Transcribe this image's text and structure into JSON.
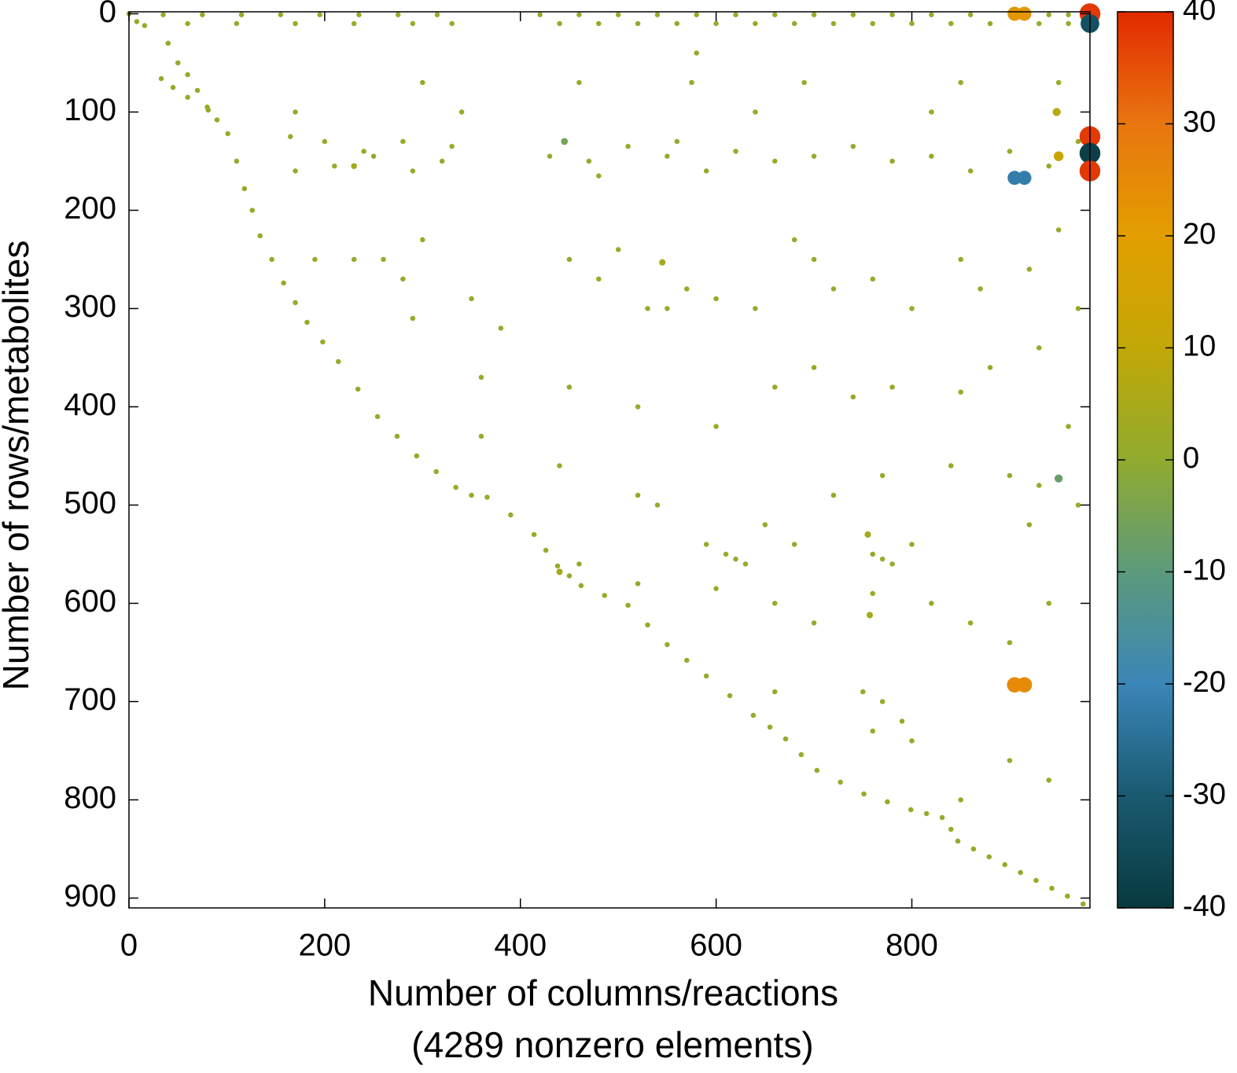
{
  "chart_data": {
    "type": "sparsity",
    "xlabel": [
      "Number of columns/reactions",
      "(4289 nonzero elements)"
    ],
    "ylabel": "Number of rows/metabolites",
    "xlim": [
      0,
      982
    ],
    "ylim": [
      -2,
      910
    ],
    "xticks": [
      0,
      200,
      400,
      600,
      800
    ],
    "yticks": [
      0,
      100,
      200,
      300,
      400,
      500,
      600,
      700,
      800,
      900
    ],
    "colorbar": {
      "lim": [
        -40,
        40
      ],
      "ticks": [
        40,
        30,
        20,
        10,
        0,
        -10,
        -20,
        -30,
        -40
      ],
      "colormap": [
        {
          "value": -40,
          "color": "#083a3f"
        },
        {
          "value": -30,
          "color": "#1a5a70"
        },
        {
          "value": -20,
          "color": "#3a86b8"
        },
        {
          "value": -10,
          "color": "#5c9a7c"
        },
        {
          "value": 0,
          "color": "#90ab2e"
        },
        {
          "value": 10,
          "color": "#c2a806"
        },
        {
          "value": 20,
          "color": "#e39e00"
        },
        {
          "value": 30,
          "color": "#e8760f"
        },
        {
          "value": 40,
          "color": "#e22a00"
        }
      ]
    },
    "points": [
      [
        0,
        0,
        1
      ],
      [
        8,
        8,
        1
      ],
      [
        16,
        12,
        1
      ],
      [
        33,
        66,
        1
      ],
      [
        45,
        75,
        1
      ],
      [
        60,
        85,
        1
      ],
      [
        81,
        98,
        1
      ],
      [
        90,
        108,
        1
      ],
      [
        101,
        122,
        1
      ],
      [
        110,
        150,
        1
      ],
      [
        118,
        178,
        1
      ],
      [
        126,
        200,
        1
      ],
      [
        134,
        226,
        1
      ],
      [
        146,
        250,
        1
      ],
      [
        158,
        274,
        1
      ],
      [
        170,
        294,
        1
      ],
      [
        182,
        314,
        1
      ],
      [
        198,
        334,
        1
      ],
      [
        214,
        354,
        1
      ],
      [
        234,
        382,
        1
      ],
      [
        254,
        410,
        1
      ],
      [
        274,
        430,
        1
      ],
      [
        294,
        450,
        1
      ],
      [
        314,
        466,
        1
      ],
      [
        334,
        482,
        1
      ],
      [
        350,
        490,
        1
      ],
      [
        366,
        492,
        1
      ],
      [
        390,
        510,
        1
      ],
      [
        414,
        530,
        1
      ],
      [
        426,
        546,
        1
      ],
      [
        438,
        562,
        1
      ],
      [
        450,
        572,
        1
      ],
      [
        462,
        582,
        1
      ],
      [
        486,
        592,
        1
      ],
      [
        510,
        602,
        1
      ],
      [
        530,
        622,
        1
      ],
      [
        550,
        642,
        1
      ],
      [
        570,
        658,
        1
      ],
      [
        590,
        674,
        1
      ],
      [
        614,
        694,
        1
      ],
      [
        638,
        714,
        1
      ],
      [
        655,
        726,
        1
      ],
      [
        671,
        738,
        1
      ],
      [
        687,
        754,
        1
      ],
      [
        703,
        770,
        1
      ],
      [
        727,
        782,
        1
      ],
      [
        751,
        794,
        1
      ],
      [
        775,
        802,
        1
      ],
      [
        799,
        810,
        1
      ],
      [
        815,
        814,
        1
      ],
      [
        831,
        818,
        1
      ],
      [
        840,
        830,
        1
      ],
      [
        847,
        842,
        1
      ],
      [
        863,
        850,
        1
      ],
      [
        879,
        858,
        1
      ],
      [
        895,
        866,
        1
      ],
      [
        911,
        874,
        1
      ],
      [
        927,
        882,
        1
      ],
      [
        943,
        890,
        1
      ],
      [
        959,
        898,
        1
      ],
      [
        975,
        906,
        1
      ],
      [
        40,
        30,
        1
      ],
      [
        50,
        50,
        1
      ],
      [
        60,
        62,
        1
      ],
      [
        70,
        78,
        1
      ],
      [
        80,
        95,
        1
      ],
      [
        35,
        1,
        1
      ],
      [
        75,
        1,
        1
      ],
      [
        115,
        1,
        1
      ],
      [
        155,
        1,
        1
      ],
      [
        195,
        1,
        1
      ],
      [
        235,
        1,
        1
      ],
      [
        275,
        1,
        1
      ],
      [
        315,
        1,
        1
      ],
      [
        420,
        1,
        1
      ],
      [
        460,
        1,
        1
      ],
      [
        500,
        1,
        1
      ],
      [
        540,
        1,
        1
      ],
      [
        580,
        1,
        1
      ],
      [
        620,
        1,
        1
      ],
      [
        660,
        1,
        1
      ],
      [
        700,
        1,
        1
      ],
      [
        740,
        1,
        1
      ],
      [
        780,
        1,
        1
      ],
      [
        820,
        1,
        1
      ],
      [
        860,
        1,
        1
      ],
      [
        940,
        1,
        1
      ],
      [
        960,
        1,
        1
      ],
      [
        60,
        10,
        1
      ],
      [
        110,
        10,
        1
      ],
      [
        170,
        10,
        1
      ],
      [
        230,
        10,
        1
      ],
      [
        290,
        10,
        1
      ],
      [
        330,
        10,
        1
      ],
      [
        440,
        10,
        1
      ],
      [
        480,
        10,
        1
      ],
      [
        520,
        10,
        1
      ],
      [
        560,
        10,
        1
      ],
      [
        600,
        10,
        1
      ],
      [
        640,
        10,
        1
      ],
      [
        680,
        10,
        1
      ],
      [
        720,
        10,
        1
      ],
      [
        760,
        10,
        1
      ],
      [
        800,
        10,
        1
      ],
      [
        840,
        10,
        1
      ],
      [
        880,
        10,
        1
      ],
      [
        930,
        10,
        1
      ],
      [
        960,
        10,
        1
      ],
      [
        165,
        125,
        1
      ],
      [
        200,
        130,
        1
      ],
      [
        240,
        140,
        1
      ],
      [
        280,
        130,
        1
      ],
      [
        320,
        150,
        1
      ],
      [
        170,
        160,
        1
      ],
      [
        210,
        155,
        1
      ],
      [
        250,
        145,
        1
      ],
      [
        290,
        160,
        1
      ],
      [
        330,
        135,
        1
      ],
      [
        430,
        145,
        1
      ],
      [
        470,
        150,
        1
      ],
      [
        510,
        135,
        1
      ],
      [
        550,
        145,
        1
      ],
      [
        590,
        160,
        1
      ],
      [
        620,
        140,
        1
      ],
      [
        660,
        150,
        1
      ],
      [
        700,
        145,
        1
      ],
      [
        740,
        135,
        1
      ],
      [
        780,
        150,
        1
      ],
      [
        820,
        145,
        1
      ],
      [
        860,
        160,
        1
      ],
      [
        900,
        140,
        1
      ],
      [
        940,
        155,
        1
      ],
      [
        970,
        130,
        1
      ],
      [
        230,
        155,
        3
      ],
      [
        480,
        165,
        1
      ],
      [
        560,
        130,
        1
      ],
      [
        300,
        70,
        1
      ],
      [
        460,
        70,
        1
      ],
      [
        575,
        70,
        1
      ],
      [
        690,
        70,
        1
      ],
      [
        850,
        70,
        1
      ],
      [
        950,
        70,
        1
      ],
      [
        580,
        40,
        1
      ],
      [
        170,
        100,
        1
      ],
      [
        340,
        100,
        1
      ],
      [
        640,
        100,
        1
      ],
      [
        820,
        100,
        1
      ],
      [
        190,
        250,
        1
      ],
      [
        230,
        250,
        1
      ],
      [
        260,
        250,
        1
      ],
      [
        300,
        230,
        1
      ],
      [
        280,
        270,
        1
      ],
      [
        350,
        290,
        1
      ],
      [
        380,
        320,
        1
      ],
      [
        450,
        250,
        1
      ],
      [
        480,
        270,
        1
      ],
      [
        500,
        240,
        1
      ],
      [
        530,
        300,
        1
      ],
      [
        550,
        300,
        1
      ],
      [
        570,
        280,
        1
      ],
      [
        600,
        290,
        1
      ],
      [
        640,
        300,
        1
      ],
      [
        680,
        230,
        1
      ],
      [
        700,
        250,
        1
      ],
      [
        720,
        280,
        1
      ],
      [
        760,
        270,
        1
      ],
      [
        800,
        300,
        1
      ],
      [
        850,
        250,
        1
      ],
      [
        870,
        280,
        1
      ],
      [
        920,
        260,
        1
      ],
      [
        950,
        220,
        1
      ],
      [
        970,
        300,
        1
      ],
      [
        290,
        310,
        1
      ],
      [
        360,
        370,
        1
      ],
      [
        450,
        380,
        1
      ],
      [
        520,
        400,
        1
      ],
      [
        600,
        420,
        1
      ],
      [
        660,
        380,
        1
      ],
      [
        700,
        360,
        1
      ],
      [
        740,
        390,
        1
      ],
      [
        780,
        380,
        1
      ],
      [
        850,
        385,
        1
      ],
      [
        880,
        360,
        1
      ],
      [
        930,
        340,
        1
      ],
      [
        960,
        420,
        1
      ],
      [
        360,
        430,
        1
      ],
      [
        440,
        460,
        1
      ],
      [
        520,
        490,
        1
      ],
      [
        540,
        500,
        1
      ],
      [
        590,
        540,
        1
      ],
      [
        650,
        520,
        1
      ],
      [
        680,
        540,
        1
      ],
      [
        720,
        490,
        1
      ],
      [
        770,
        470,
        1
      ],
      [
        800,
        540,
        1
      ],
      [
        840,
        460,
        1
      ],
      [
        900,
        470,
        1
      ],
      [
        930,
        480,
        1
      ],
      [
        970,
        500,
        1
      ],
      [
        610,
        550,
        1
      ],
      [
        620,
        555,
        1
      ],
      [
        630,
        560,
        1
      ],
      [
        760,
        550,
        1
      ],
      [
        770,
        555,
        1
      ],
      [
        780,
        560,
        1
      ],
      [
        600,
        585,
        1
      ],
      [
        660,
        600,
        1
      ],
      [
        700,
        620,
        1
      ],
      [
        760,
        590,
        1
      ],
      [
        820,
        600,
        1
      ],
      [
        860,
        620,
        1
      ],
      [
        900,
        640,
        1
      ],
      [
        940,
        600,
        1
      ],
      [
        660,
        690,
        1
      ],
      [
        750,
        690,
        1
      ],
      [
        770,
        700,
        1
      ],
      [
        790,
        720,
        1
      ],
      [
        760,
        730,
        1
      ],
      [
        900,
        760,
        1
      ],
      [
        940,
        780,
        1
      ],
      [
        850,
        800,
        1
      ],
      [
        800,
        740,
        1
      ],
      [
        920,
        520,
        1
      ],
      [
        520,
        580,
        1
      ],
      [
        460,
        560,
        1
      ],
      [
        440,
        568,
        4
      ],
      [
        545,
        253,
        4
      ],
      [
        755,
        530,
        4
      ],
      [
        757,
        612,
        4
      ],
      [
        445,
        130,
        -5
      ],
      [
        905,
        0,
        22
      ],
      [
        915,
        0,
        22
      ],
      [
        982,
        0,
        38
      ],
      [
        982,
        10,
        -33
      ],
      [
        982,
        125,
        38
      ],
      [
        982,
        142,
        -38
      ],
      [
        982,
        160,
        38
      ],
      [
        905,
        167,
        -22
      ],
      [
        915,
        167,
        -22
      ],
      [
        905,
        683,
        25
      ],
      [
        915,
        683,
        25
      ],
      [
        950,
        473,
        -8
      ],
      [
        950,
        145,
        12
      ],
      [
        948,
        100,
        8
      ]
    ]
  }
}
